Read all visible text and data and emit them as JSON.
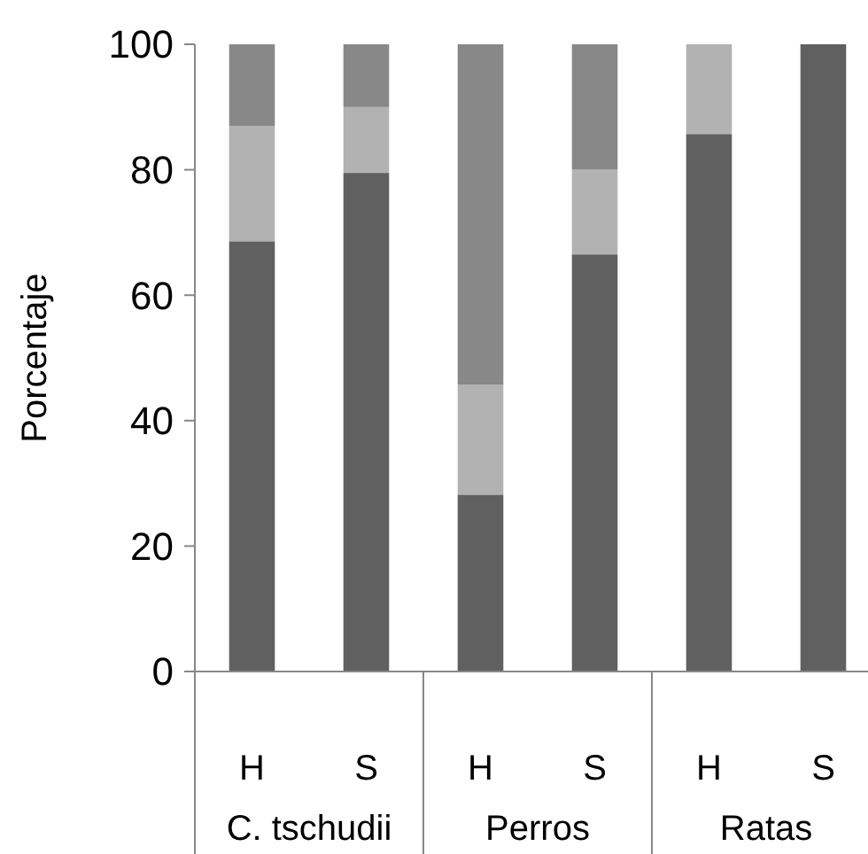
{
  "chart_data": {
    "type": "bar",
    "ylabel": "Porcentaje",
    "stacked": true,
    "categories": [
      "H",
      "S",
      "H",
      "S",
      "H",
      "S"
    ],
    "series": [
      {
        "color": "#606060",
        "values": [
          68.6,
          79.5,
          28.2,
          66.5,
          85.7,
          100
        ]
      },
      {
        "color": "#b2b2b2",
        "values": [
          18.4,
          10.5,
          17.5,
          13.5,
          14.3,
          0
        ]
      },
      {
        "color": "#888888",
        "values": [
          13,
          10,
          54.3,
          20,
          0,
          0
        ]
      }
    ],
    "ylim": [
      0,
      100
    ],
    "yticks": [
      0,
      20,
      40,
      60,
      80,
      100
    ],
    "annotations": [
      "C. tschudii",
      "Perros",
      "Ratas"
    ]
  }
}
